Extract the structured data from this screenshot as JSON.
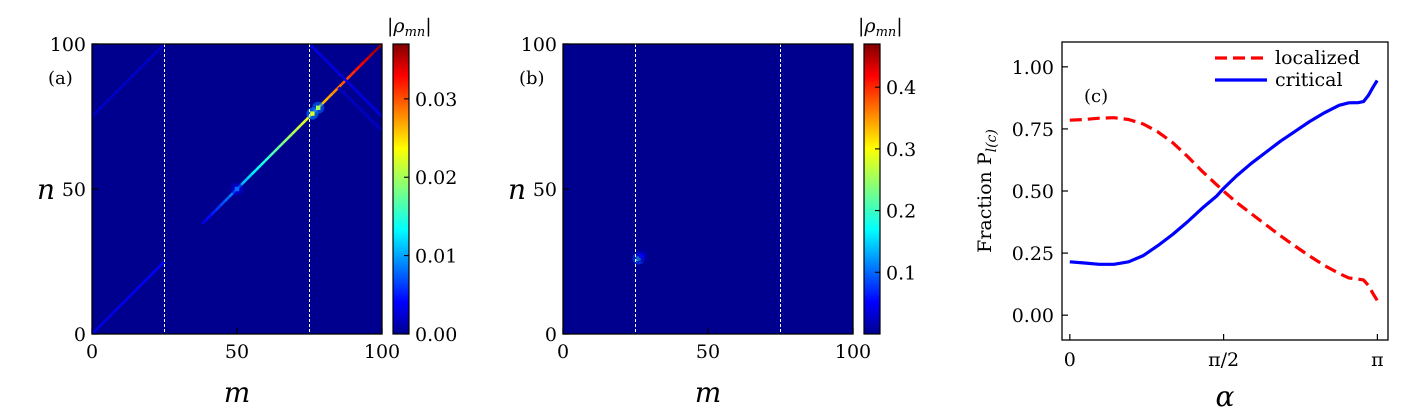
{
  "chart_data": [
    {
      "type": "heatmap",
      "panel_label": "(a)",
      "xlabel": "m",
      "ylabel": "n",
      "xlim": [
        0,
        100
      ],
      "ylim": [
        0,
        100
      ],
      "xticks": [
        "0",
        "50",
        "100"
      ],
      "yticks": [
        "0",
        "50",
        "100"
      ],
      "colorbar": {
        "label": "|ρmn|",
        "label_main": "|ρ",
        "label_sub": "mn",
        "label_end": "|",
        "range": [
          0,
          0.037
        ],
        "ticks": [
          0.0,
          0.01,
          0.02,
          0.03
        ],
        "tick_labels": [
          "0.00",
          "0.01",
          "0.02",
          "0.03"
        ],
        "colormap": "jet"
      },
      "vlines_x": [
        25,
        75
      ],
      "features": [
        {
          "kind": "diagonal",
          "from": [
            38,
            38
          ],
          "to": [
            100,
            100
          ],
          "value_start": 0.003,
          "value_end": 0.037
        },
        {
          "kind": "diagonal",
          "from": [
            0,
            0
          ],
          "to": [
            25,
            25
          ],
          "value_start": 0.003,
          "value_end": 0.004
        },
        {
          "kind": "antidiagonal",
          "from": [
            75,
            100
          ],
          "to": [
            100,
            75
          ],
          "value_start": 0.003,
          "value_end": 0.003
        },
        {
          "kind": "antidiagonal",
          "from": [
            0,
            75
          ],
          "to": [
            25,
            100
          ],
          "value_start": 0.002,
          "value_end": 0.002
        },
        {
          "kind": "antidiagonal",
          "from": [
            85,
            85
          ],
          "to": [
            100,
            70
          ],
          "value_start": 0.002,
          "value_end": 0.002
        }
      ],
      "hotspots": [
        {
          "m": 76,
          "n": 76,
          "value": 0.022
        },
        {
          "m": 78,
          "n": 78,
          "value": 0.02
        },
        {
          "m": 50,
          "n": 50,
          "value": 0.008
        }
      ]
    },
    {
      "type": "heatmap",
      "panel_label": "(b)",
      "xlabel": "m",
      "ylabel": "n",
      "xlim": [
        0,
        100
      ],
      "ylim": [
        0,
        100
      ],
      "xticks": [
        "0",
        "50",
        "100"
      ],
      "yticks": [
        "0",
        "50",
        "100"
      ],
      "colorbar": {
        "label": "|ρmn|",
        "label_main": "|ρ",
        "label_sub": "mn",
        "label_end": "|",
        "range": [
          0.0,
          0.47
        ],
        "ticks": [
          0.1,
          0.2,
          0.3,
          0.4
        ],
        "tick_labels": [
          "0.1",
          "0.2",
          "0.3",
          "0.4"
        ],
        "colormap": "jet"
      },
      "vlines_x": [
        25,
        75
      ],
      "hotspots": [
        {
          "m": 26,
          "n": 26,
          "value": 0.2
        },
        {
          "m": 27,
          "n": 27,
          "value": 0.05
        }
      ]
    },
    {
      "type": "line",
      "panel_label": "(c)",
      "xlabel": "α",
      "ylabel_main": "Fraction  P",
      "ylabel_sub": "l(c)",
      "xlim": [
        -0.08,
        3.25
      ],
      "ylim": [
        -0.1,
        1.1
      ],
      "xticks": [
        {
          "value": 0,
          "label": "0"
        },
        {
          "value": 1.5708,
          "label": "π/2"
        },
        {
          "value": 3.1416,
          "label": "π"
        }
      ],
      "yticks": [
        {
          "value": 0.0,
          "label": "0.00"
        },
        {
          "value": 0.25,
          "label": "0.25"
        },
        {
          "value": 0.5,
          "label": "0.50"
        },
        {
          "value": 0.75,
          "label": "0.75"
        },
        {
          "value": 1.0,
          "label": "1.00"
        }
      ],
      "legend_position": "top-right",
      "series": [
        {
          "name": "localized",
          "color": "#ff0000",
          "style": "dashed",
          "x": [
            0.0,
            0.15,
            0.3,
            0.45,
            0.6,
            0.75,
            0.9,
            1.05,
            1.2,
            1.35,
            1.5,
            1.57,
            1.7,
            1.85,
            2.0,
            2.15,
            2.3,
            2.45,
            2.6,
            2.75,
            2.85,
            2.95,
            3.0,
            3.05,
            3.1,
            3.14
          ],
          "y": [
            0.785,
            0.788,
            0.793,
            0.795,
            0.788,
            0.77,
            0.738,
            0.695,
            0.64,
            0.58,
            0.525,
            0.5,
            0.455,
            0.41,
            0.365,
            0.32,
            0.278,
            0.238,
            0.2,
            0.168,
            0.15,
            0.145,
            0.142,
            0.12,
            0.085,
            0.06
          ]
        },
        {
          "name": "critical",
          "color": "#0000ff",
          "style": "solid",
          "x": [
            0.0,
            0.15,
            0.3,
            0.45,
            0.6,
            0.75,
            0.9,
            1.05,
            1.2,
            1.35,
            1.5,
            1.57,
            1.7,
            1.85,
            2.0,
            2.15,
            2.3,
            2.45,
            2.6,
            2.75,
            2.85,
            2.95,
            3.0,
            3.05,
            3.1,
            3.14
          ],
          "y": [
            0.215,
            0.21,
            0.205,
            0.205,
            0.215,
            0.24,
            0.28,
            0.325,
            0.375,
            0.43,
            0.48,
            0.51,
            0.56,
            0.61,
            0.655,
            0.7,
            0.74,
            0.78,
            0.815,
            0.845,
            0.855,
            0.856,
            0.86,
            0.885,
            0.92,
            0.945
          ]
        }
      ]
    }
  ],
  "colors": {
    "heatmap_background": "#00008f",
    "guide_line": "#ffffff"
  }
}
